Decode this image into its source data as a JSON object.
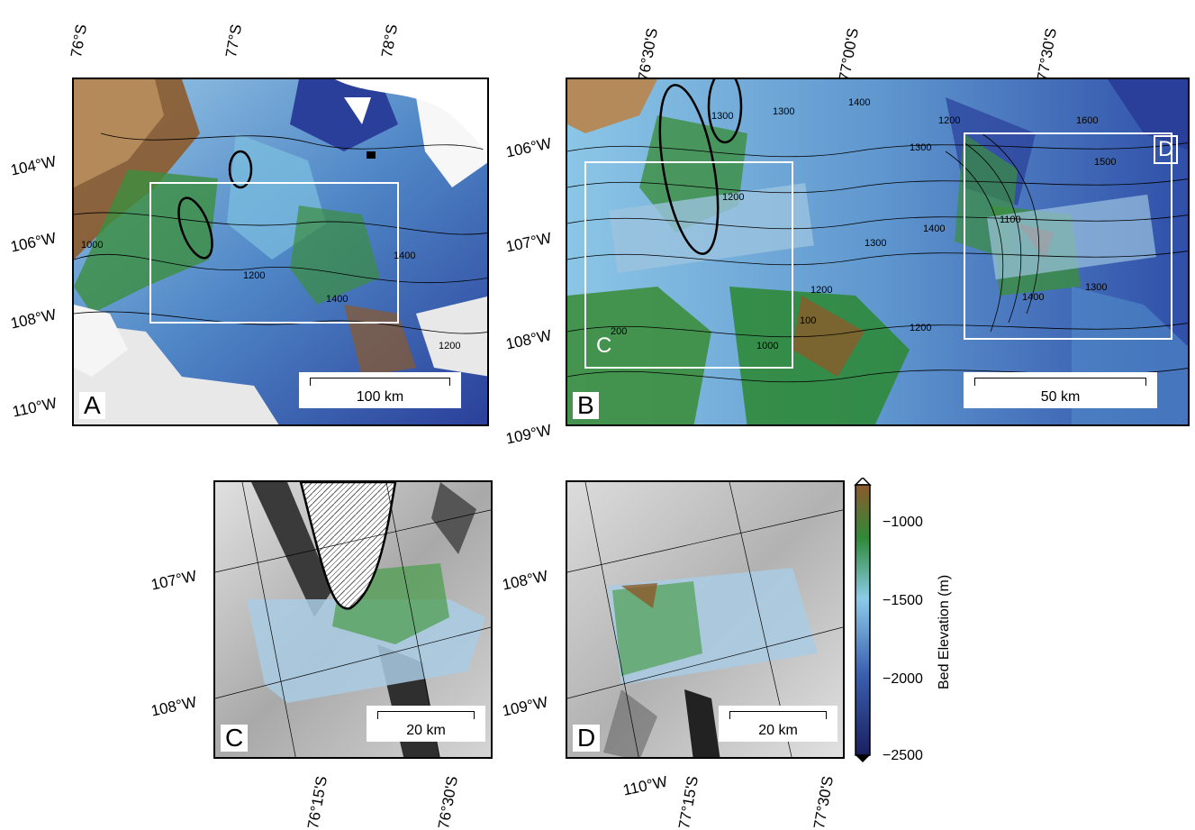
{
  "panels": {
    "A": {
      "label": "A",
      "scale": "100 km",
      "lat_ticks": [
        "76°S",
        "77°S",
        "78°S"
      ],
      "lon_ticks": [
        "104°W",
        "106°W",
        "108°W",
        "110°W"
      ],
      "contours": [
        "1000",
        "1200",
        "1400",
        "1400",
        "1200"
      ]
    },
    "B": {
      "label": "B",
      "scale": "50 km",
      "lat_ticks": [
        "76°30'S",
        "77°00'S",
        "77°30'S"
      ],
      "lon_ticks": [
        "106°W",
        "107°W",
        "108°W",
        "109°W"
      ],
      "contours": [
        "1300",
        "1300",
        "1200",
        "1400",
        "1200",
        "1300",
        "1600",
        "1500",
        "1400",
        "1300",
        "1200",
        "1100",
        "1000",
        "1200",
        "1400",
        "1300",
        "200",
        "100"
      ],
      "box_c": "C",
      "box_d": "D"
    },
    "C": {
      "label": "C",
      "scale": "20 km",
      "lat_ticks": [
        "76°15'S",
        "76°30'S"
      ],
      "lon_ticks": [
        "107°W",
        "108°W"
      ]
    },
    "D": {
      "label": "D",
      "scale": "20 km",
      "lat_ticks": [
        "110°W",
        "77°15'S",
        "77°30'S"
      ],
      "lon_ticks": [
        "108°W",
        "109°W"
      ]
    }
  },
  "colorbar": {
    "title": "Bed Elevation (m)",
    "ticks": [
      "−1000",
      "−1500",
      "−2000",
      "−2500"
    ],
    "colors": [
      "#8c5a2b",
      "#2f8a3a",
      "#8ccbe8",
      "#3b5fb0",
      "#1a1f5e"
    ]
  }
}
